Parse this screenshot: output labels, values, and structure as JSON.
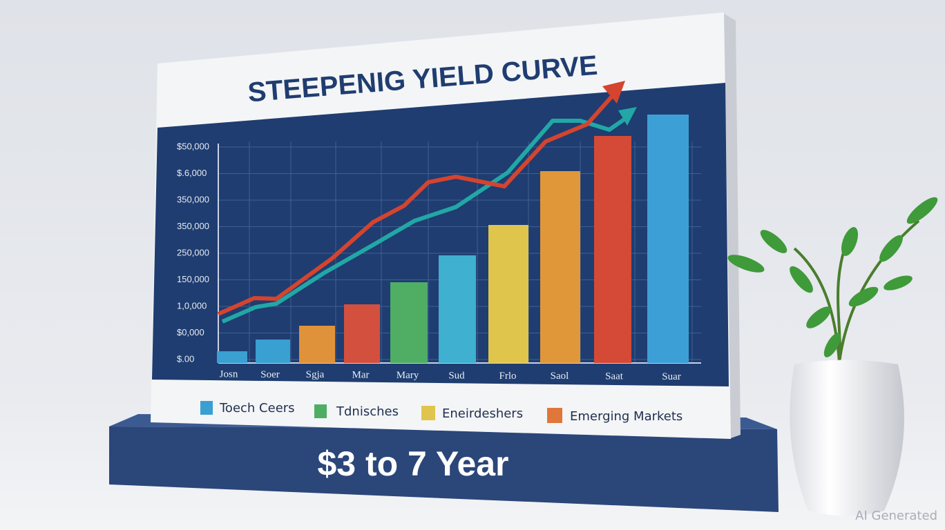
{
  "title": "STEEPENIG YIELD CURVE",
  "y_axis_labels": [
    "$50,000",
    "$.6,000",
    "350,000",
    "350,000",
    "250,000",
    "150,000",
    "1,0,000",
    "$0,000",
    "$.00"
  ],
  "categories": [
    "Josn",
    "Soer",
    "Sgja",
    "Mar",
    "Mary",
    "Sud",
    "Frlo",
    "Saol",
    "Saat",
    "Suar"
  ],
  "legend": [
    "Toech Ceers",
    "Tdnisches",
    "Eneirdeshers",
    "Emerging Markets"
  ],
  "footer": "$3 to 7 Year",
  "watermark": "AI Generated"
}
